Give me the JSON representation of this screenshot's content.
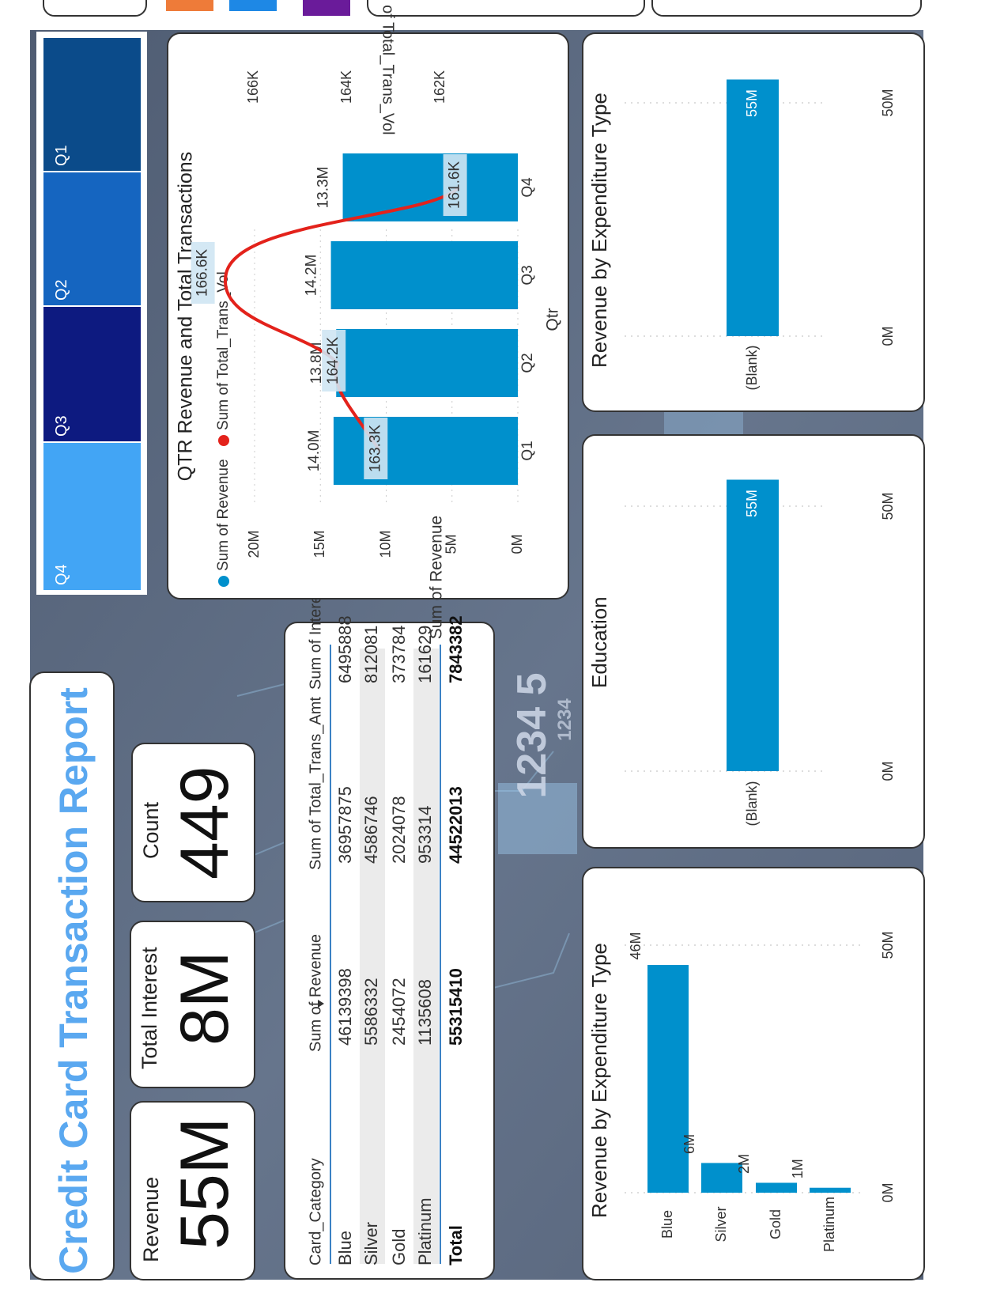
{
  "report": {
    "title": "Credit Card Transaction Report"
  },
  "kpis": [
    {
      "label": "Revenue",
      "value": "55M"
    },
    {
      "label": "Total Interest",
      "value": "8M"
    },
    {
      "label": "Count",
      "value": "449"
    }
  ],
  "quarter_tiles": [
    "Q4",
    "Q3",
    "Q2",
    "Q1"
  ],
  "table": {
    "headers": [
      "Card_Category",
      "Sum of Revenue",
      "Sum of Total_Trans_Amt",
      "Sum of Interest_Earned"
    ],
    "rows": [
      [
        "Blue",
        "46139398",
        "36957875",
        "6495888"
      ],
      [
        "Silver",
        "5586332",
        "4586746",
        "812081"
      ],
      [
        "Gold",
        "2454072",
        "2024078",
        "373784"
      ],
      [
        "Platinum",
        "1135608",
        "953314",
        "161629"
      ]
    ],
    "total": [
      "Total",
      "55315410",
      "44522013",
      "7843382"
    ]
  },
  "background_text": {
    "card_number_big": "1234 5",
    "card_number_small": "1234"
  },
  "colors": {
    "accent_blue": "#0090cc",
    "line_red": "#e3221b",
    "title_blue": "#5aa8f0",
    "tile_q4": "#42a5f5",
    "tile_q3": "#0d1a80",
    "tile_q2": "#1565c0",
    "tile_q1": "#0b4b8a",
    "background": "#5c6a80"
  },
  "chart_data": [
    {
      "type": "bar",
      "title": "QTR Revenue and Total Transactions",
      "xlabel": "Qtr",
      "ylabel": "Sum of Revenue",
      "y2label": "Sum of Total_Trans_Vol",
      "categories": [
        "Q1",
        "Q2",
        "Q3",
        "Q4"
      ],
      "series": [
        {
          "name": "Sum of Revenue",
          "values": [
            14.0,
            13.8,
            14.2,
            13.3
          ],
          "labels": [
            "14.0M",
            "13.8M",
            "14.2M",
            "13.3M"
          ]
        },
        {
          "name": "Sum of Total_Trans_Vol",
          "values": [
            163.3,
            164.2,
            166.6,
            161.6
          ],
          "labels": [
            "163.3K",
            "164.2K",
            "166.6K",
            "161.6K"
          ]
        }
      ],
      "ylim": [
        0,
        20
      ],
      "yticks": [
        "0M",
        "5M",
        "10M",
        "15M",
        "20M"
      ],
      "y2lim": [
        161,
        167
      ],
      "y2ticks": [
        "162K",
        "164K",
        "166K"
      ],
      "legend": "top-left"
    },
    {
      "type": "bar",
      "title": "Revenue by Expenditure Type",
      "categories": [
        "(Blank)"
      ],
      "values": [
        55
      ],
      "labels": [
        "55M"
      ],
      "xlim": [
        0,
        55
      ],
      "xticks": [
        "0M",
        "50M"
      ]
    },
    {
      "type": "bar",
      "title": "Education",
      "categories": [
        "(Blank)"
      ],
      "values": [
        55
      ],
      "labels": [
        "55M"
      ],
      "xlim": [
        0,
        55
      ],
      "xticks": [
        "0M",
        "50M"
      ]
    },
    {
      "type": "bar",
      "title": "Revenue by Expenditure Type",
      "categories": [
        "Blue",
        "Silver",
        "Gold",
        "Platinum"
      ],
      "values": [
        46,
        6,
        2,
        1
      ],
      "labels": [
        "46M",
        "6M",
        "2M",
        "1M"
      ],
      "xlim": [
        0,
        55
      ],
      "xticks": [
        "0M",
        "50M"
      ]
    }
  ]
}
